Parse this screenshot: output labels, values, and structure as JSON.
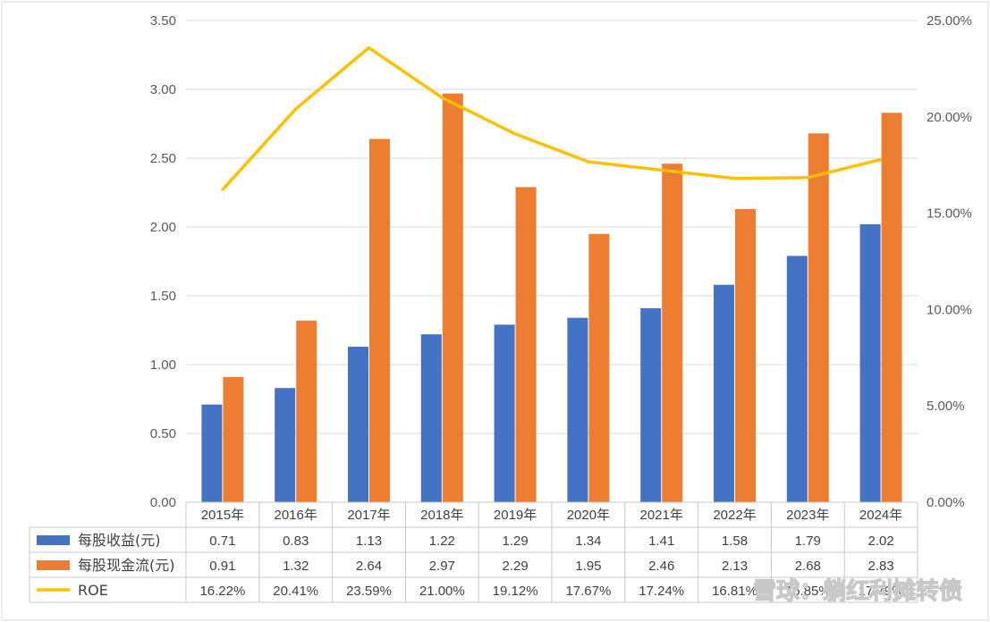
{
  "chart_data": {
    "type": "bar",
    "categories": [
      "2015年",
      "2016年",
      "2017年",
      "2018年",
      "2019年",
      "2020年",
      "2021年",
      "2022年",
      "2023年",
      "2024年"
    ],
    "series": [
      {
        "name": "每股收益(元)",
        "kind": "bar",
        "axis": "left",
        "color": "#4472C4",
        "values": [
          0.71,
          0.83,
          1.13,
          1.22,
          1.29,
          1.34,
          1.41,
          1.58,
          1.79,
          2.02
        ],
        "labels": [
          "0.71",
          "0.83",
          "1.13",
          "1.22",
          "1.29",
          "1.34",
          "1.41",
          "1.58",
          "1.79",
          "2.02"
        ]
      },
      {
        "name": "每股现金流(元)",
        "kind": "bar",
        "axis": "left",
        "color": "#ED7D31",
        "values": [
          0.91,
          1.32,
          2.64,
          2.97,
          2.29,
          1.95,
          2.46,
          2.13,
          2.68,
          2.83
        ],
        "labels": [
          "0.91",
          "1.32",
          "2.64",
          "2.97",
          "2.29",
          "1.95",
          "2.46",
          "2.13",
          "2.68",
          "2.83"
        ]
      },
      {
        "name": "ROE",
        "kind": "line",
        "axis": "right",
        "color": "#FFC000",
        "values": [
          16.22,
          20.41,
          23.59,
          21.0,
          19.12,
          17.67,
          17.24,
          16.81,
          16.85,
          17.79
        ],
        "labels": [
          "16.22%",
          "20.41%",
          "23.59%",
          "21.00%",
          "19.12%",
          "17.67%",
          "17.24%",
          "16.81%",
          "16.85%",
          "17.79%"
        ]
      }
    ],
    "y_left": {
      "min": 0,
      "max": 3.5,
      "ticks": [
        "0.00",
        "0.50",
        "1.00",
        "1.50",
        "2.00",
        "2.50",
        "3.00",
        "3.50"
      ]
    },
    "y_right": {
      "min": 0,
      "max": 25,
      "ticks": [
        "0.00%",
        "5.00%",
        "10.00%",
        "15.00%",
        "20.00%",
        "25.00%"
      ]
    },
    "grid": true,
    "data_table": true
  },
  "watermark": "雪球：躺红利摊转债"
}
